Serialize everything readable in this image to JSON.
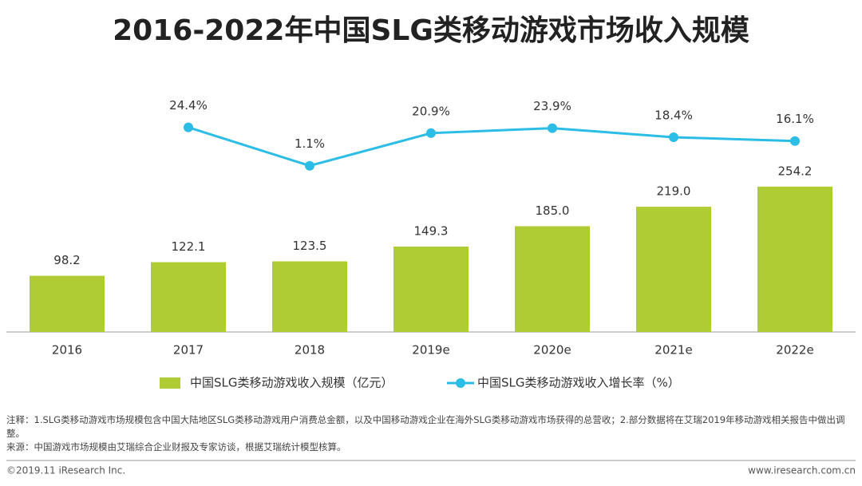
{
  "chart_data": {
    "type": "bar",
    "title": "2016-2022年中国SLG类移动游戏市场收入规模",
    "categories": [
      "2016",
      "2017",
      "2018",
      "2019e",
      "2020e",
      "2021e",
      "2022e"
    ],
    "series": [
      {
        "name": "中国SLG类移动游戏收入规模（亿元）",
        "color": "#b0cc35",
        "type": "bar",
        "values": [
          98.2,
          122.1,
          123.5,
          149.3,
          185.0,
          219.0,
          254.2
        ],
        "value_labels": [
          "98.2",
          "122.1",
          "123.5",
          "149.3",
          "185.0",
          "219.0",
          "254.2"
        ]
      },
      {
        "name": "中国SLG类移动游戏收入增长率（%）",
        "color": "#2cbde6",
        "type": "line",
        "axis": "y2",
        "values": [
          null,
          24.4,
          1.1,
          20.9,
          23.9,
          18.4,
          16.1
        ],
        "value_labels": [
          null,
          "24.4%",
          "1.1%",
          "20.9%",
          "23.9%",
          "18.4%",
          "16.1%"
        ]
      }
    ],
    "ylim": [
      0,
      300
    ],
    "y2lim": [
      0,
      30
    ],
    "notes": "注释：1.SLG类移动游戏市场规模包含中国大陆地区SLG类移动游戏用户消费总金额，以及中国移动游戏企业在海外SLG类移动游戏市场获得的总营收；2.部分数据将在艾瑞2019年移动游戏相关报告中做出调整。",
    "source": "来源：中国游戏市场规模由艾瑞综合企业财报及专家访谈，根据艾瑞统计模型核算。",
    "copyright": "©2019.11 iResearch Inc.",
    "website": "www.iresearch.com.cn"
  }
}
